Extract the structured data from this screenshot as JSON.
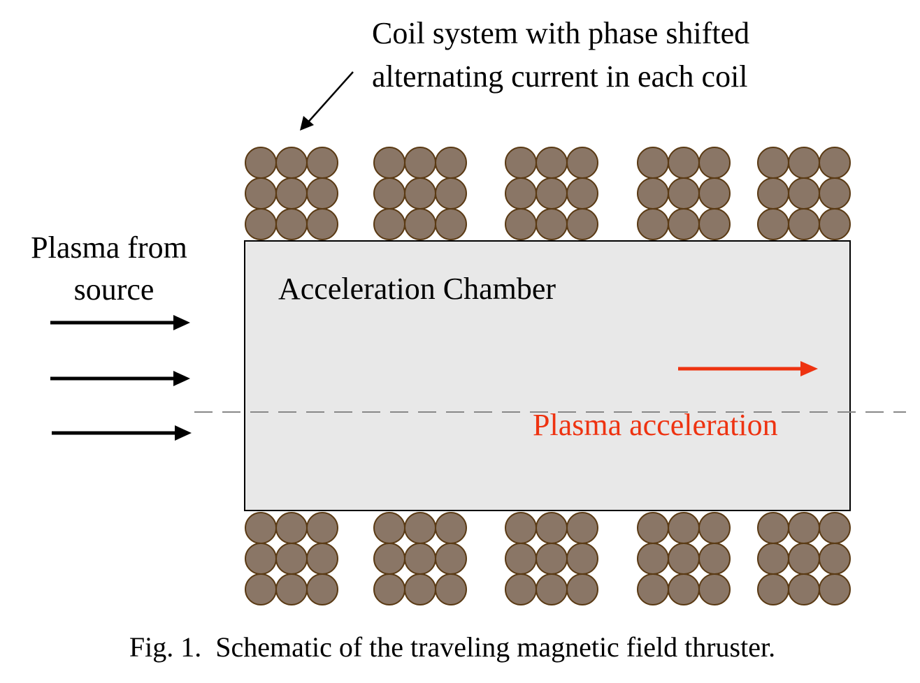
{
  "annotation": {
    "coil_system_line1": "Coil system with phase shifted",
    "coil_system_line2": "alternating current in each coil"
  },
  "inlet": {
    "line1": "Plasma from",
    "line2": "source"
  },
  "chamber": {
    "label": "Acceleration Chamber"
  },
  "acceleration": {
    "label": "Plasma acceleration"
  },
  "caption": "Fig. 1.  Schematic of the traveling magnetic field thruster.",
  "colors": {
    "coil_fill": "#8a7666",
    "coil_outline": "#5a3a14",
    "chamber_fill": "#e8e8e8",
    "acceleration_accent": "#ee3311",
    "axis_line": "#888888"
  },
  "coils": {
    "count_per_side": 5,
    "rows": 3,
    "cols": 3
  }
}
